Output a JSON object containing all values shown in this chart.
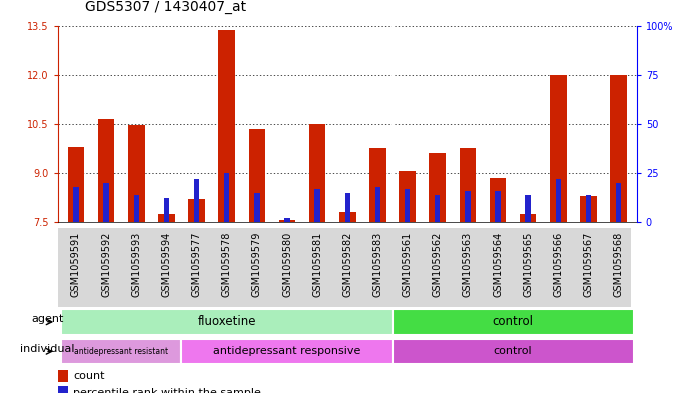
{
  "title": "GDS5307 / 1430407_at",
  "samples": [
    "GSM1059591",
    "GSM1059592",
    "GSM1059593",
    "GSM1059594",
    "GSM1059577",
    "GSM1059578",
    "GSM1059579",
    "GSM1059580",
    "GSM1059581",
    "GSM1059582",
    "GSM1059583",
    "GSM1059561",
    "GSM1059562",
    "GSM1059563",
    "GSM1059564",
    "GSM1059565",
    "GSM1059566",
    "GSM1059567",
    "GSM1059568"
  ],
  "count_values": [
    9.8,
    10.65,
    10.45,
    7.75,
    8.2,
    13.35,
    10.35,
    7.55,
    10.5,
    7.8,
    9.75,
    9.05,
    9.6,
    9.75,
    8.85,
    7.75,
    12.0,
    8.3,
    12.0
  ],
  "percentile_values": [
    18,
    20,
    14,
    12,
    22,
    25,
    15,
    2,
    17,
    15,
    18,
    17,
    14,
    16,
    16,
    14,
    22,
    14,
    20
  ],
  "ylim_left": [
    7.5,
    13.5
  ],
  "ylim_right": [
    0,
    100
  ],
  "yticks_left": [
    7.5,
    9.0,
    10.5,
    12.0,
    13.5
  ],
  "yticks_right": [
    0,
    25,
    50,
    75,
    100
  ],
  "ytick_labels_right": [
    "0",
    "25",
    "50",
    "75",
    "100%"
  ],
  "bar_color_red": "#cc2200",
  "bar_color_blue": "#2222cc",
  "bg_color": "#ffffff",
  "xtick_bg": "#d8d8d8",
  "agent_fluox_color": "#aaeebb",
  "agent_ctrl_color": "#44dd44",
  "ind_resist_color": "#dd99dd",
  "ind_resp_color": "#ee77ee",
  "ind_ctrl_color": "#cc55cc",
  "title_fontsize": 10,
  "tick_fontsize": 7,
  "bar_width": 0.55,
  "blue_bar_width": 0.18
}
